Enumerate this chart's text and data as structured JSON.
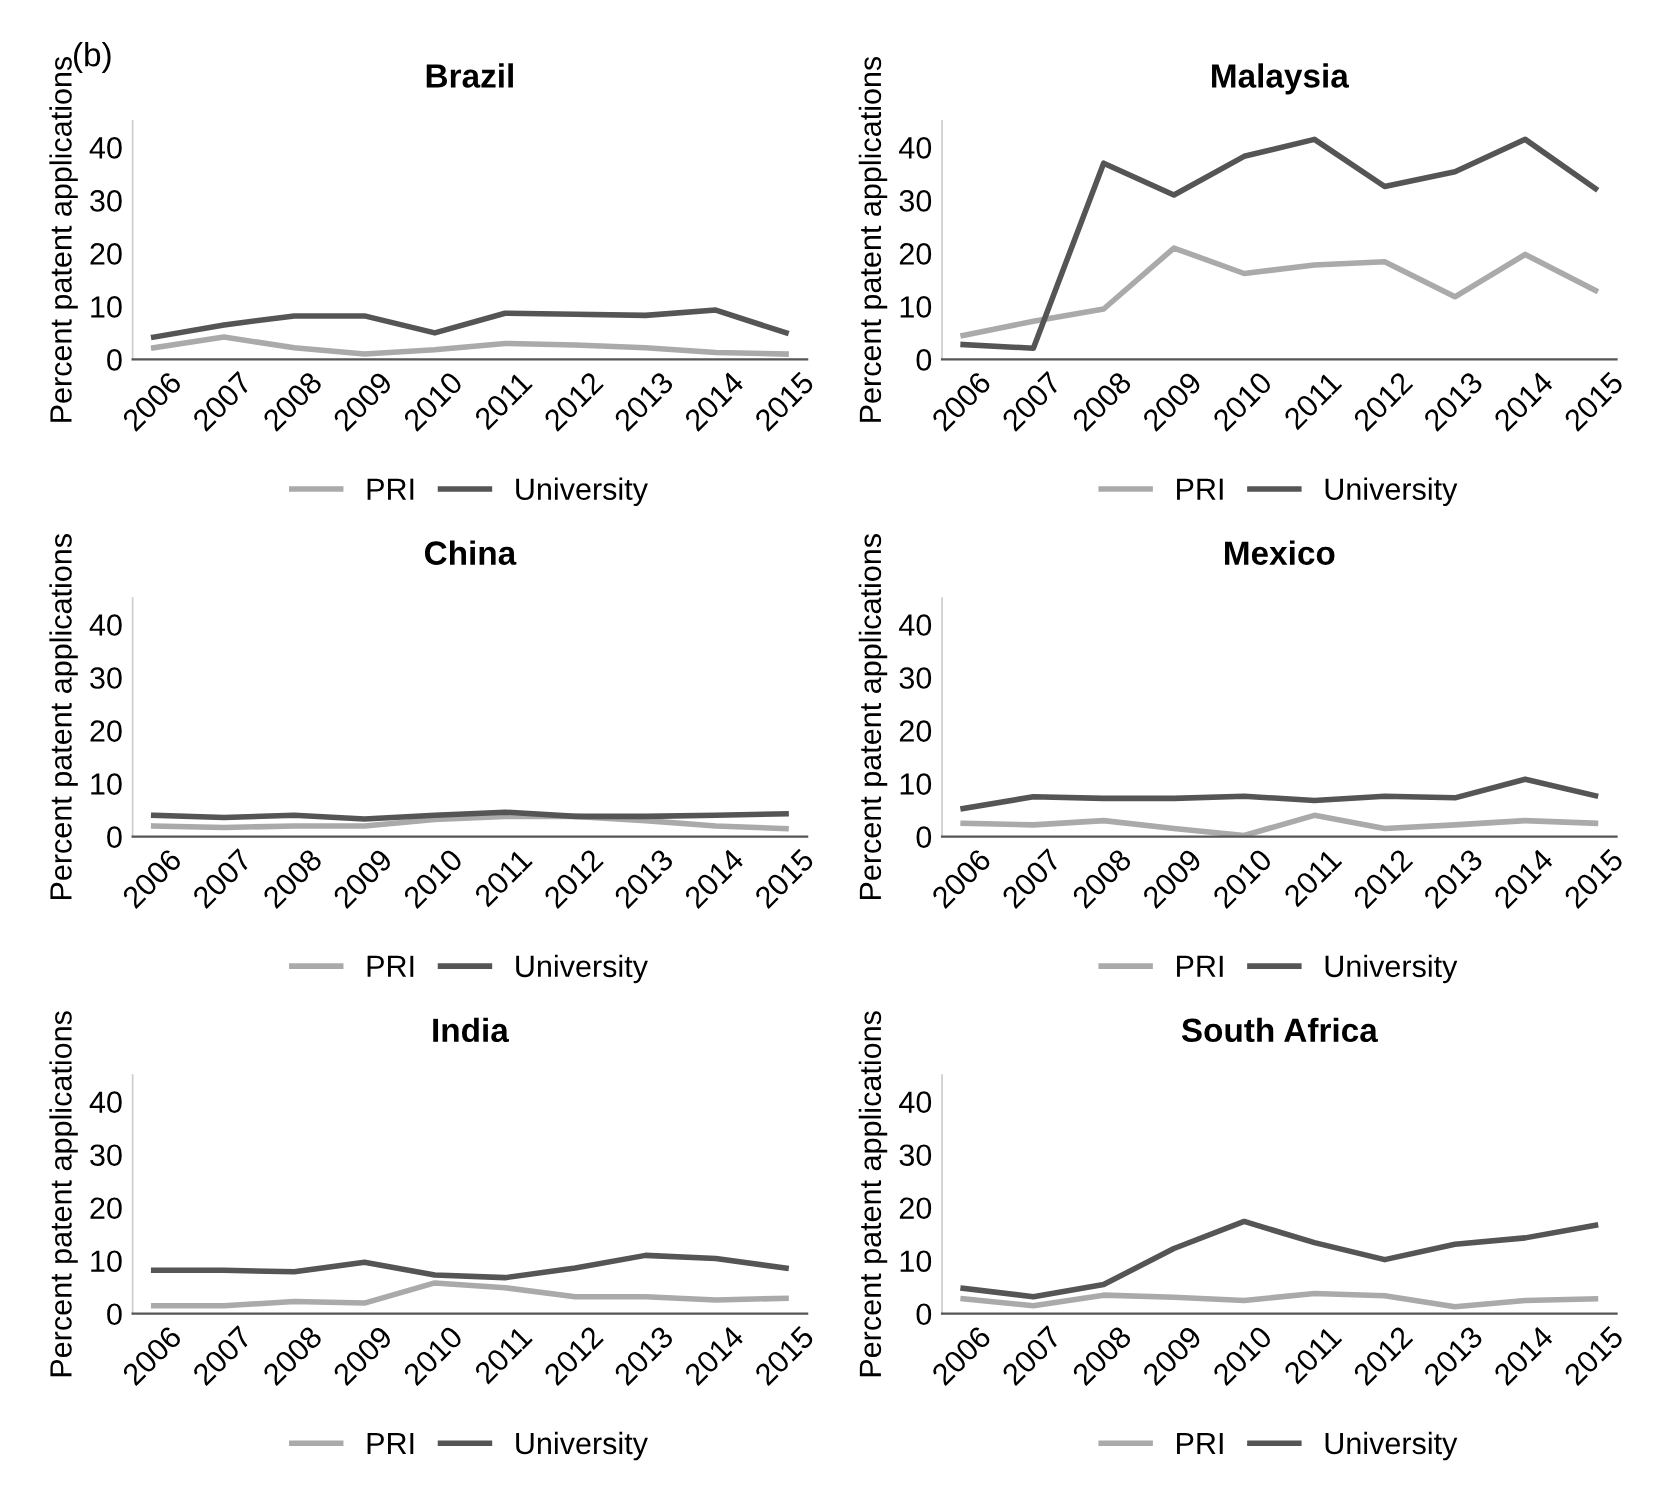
{
  "chart_data": [
    {
      "type": "line",
      "title": "Brazil",
      "ylabel": "Percent patent applications",
      "annotations": [
        "(b)"
      ],
      "categories": [
        "2006",
        "2007",
        "2008",
        "2009",
        "2010",
        "2011",
        "2012",
        "2013",
        "2014",
        "2015"
      ],
      "ylim": [
        0,
        45
      ],
      "yticks": [
        0,
        10,
        20,
        30,
        40
      ],
      "grid": false,
      "legend": "bottom",
      "series": [
        {
          "name": "PRI",
          "color": "#aaaaaa",
          "values": [
            2.2,
            4.2,
            2.2,
            1.0,
            1.8,
            3.0,
            2.7,
            2.2,
            1.3,
            1.0
          ]
        },
        {
          "name": "University",
          "color": "#555555",
          "values": [
            4.2,
            6.5,
            8.2,
            8.2,
            5.0,
            8.7,
            8.5,
            8.3,
            9.3,
            5.0
          ]
        }
      ]
    },
    {
      "type": "line",
      "title": "Malaysia",
      "ylabel": "Percent patent applications",
      "categories": [
        "2006",
        "2007",
        "2008",
        "2009",
        "2010",
        "2011",
        "2012",
        "2013",
        "2014",
        "2015"
      ],
      "ylim": [
        0,
        45
      ],
      "yticks": [
        0,
        10,
        20,
        30,
        40
      ],
      "grid": false,
      "legend": "bottom",
      "series": [
        {
          "name": "PRI",
          "color": "#aaaaaa",
          "values": [
            4.5,
            7.2,
            9.5,
            21,
            16.2,
            17.8,
            18.4,
            11.8,
            19.8,
            13.0
          ]
        },
        {
          "name": "University",
          "color": "#555555",
          "values": [
            2.8,
            2.1,
            37,
            31,
            38.3,
            41.5,
            32.6,
            35.4,
            41.5,
            32.2
          ]
        }
      ]
    },
    {
      "type": "line",
      "title": "China",
      "ylabel": "Percent patent applications",
      "categories": [
        "2006",
        "2007",
        "2008",
        "2009",
        "2010",
        "2011",
        "2012",
        "2013",
        "2014",
        "2015"
      ],
      "ylim": [
        0,
        45
      ],
      "yticks": [
        0,
        10,
        20,
        30,
        40
      ],
      "grid": false,
      "legend": "bottom",
      "series": [
        {
          "name": "PRI",
          "color": "#aaaaaa",
          "values": [
            2.0,
            1.7,
            2.0,
            2.0,
            3.2,
            3.8,
            3.8,
            3.0,
            2.0,
            1.5
          ]
        },
        {
          "name": "University",
          "color": "#555555",
          "values": [
            4.0,
            3.6,
            4.0,
            3.3,
            4.0,
            4.6,
            3.8,
            3.8,
            4.0,
            4.3
          ]
        }
      ]
    },
    {
      "type": "line",
      "title": "Mexico",
      "ylabel": "Percent patent applications",
      "categories": [
        "2006",
        "2007",
        "2008",
        "2009",
        "2010",
        "2011",
        "2012",
        "2013",
        "2014",
        "2015"
      ],
      "ylim": [
        0,
        45
      ],
      "yticks": [
        0,
        10,
        20,
        30,
        40
      ],
      "grid": false,
      "legend": "bottom",
      "series": [
        {
          "name": "PRI",
          "color": "#aaaaaa",
          "values": [
            2.5,
            2.2,
            3.0,
            1.5,
            0.2,
            4.0,
            1.5,
            2.2,
            3.0,
            2.5
          ]
        },
        {
          "name": "University",
          "color": "#555555",
          "values": [
            5.3,
            7.5,
            7.2,
            7.2,
            7.6,
            6.8,
            7.6,
            7.3,
            10.8,
            7.7
          ]
        }
      ]
    },
    {
      "type": "line",
      "title": "India",
      "ylabel": "Percent patent applications",
      "categories": [
        "2006",
        "2007",
        "2008",
        "2009",
        "2010",
        "2011",
        "2012",
        "2013",
        "2014",
        "2015"
      ],
      "ylim": [
        0,
        45
      ],
      "yticks": [
        0,
        10,
        20,
        30,
        40
      ],
      "grid": false,
      "legend": "bottom",
      "series": [
        {
          "name": "PRI",
          "color": "#aaaaaa",
          "values": [
            1.5,
            1.5,
            2.3,
            2.0,
            5.8,
            4.9,
            3.2,
            3.2,
            2.6,
            2.9
          ]
        },
        {
          "name": "University",
          "color": "#555555",
          "values": [
            8.2,
            8.2,
            7.9,
            9.7,
            7.3,
            6.8,
            8.6,
            11.0,
            10.4,
            8.6
          ]
        }
      ]
    },
    {
      "type": "line",
      "title": "South Africa",
      "ylabel": "Percent patent applications",
      "categories": [
        "2006",
        "2007",
        "2008",
        "2009",
        "2010",
        "2011",
        "2012",
        "2013",
        "2014",
        "2015"
      ],
      "ylim": [
        0,
        45
      ],
      "yticks": [
        0,
        10,
        20,
        30,
        40
      ],
      "grid": false,
      "legend": "bottom",
      "series": [
        {
          "name": "PRI",
          "color": "#aaaaaa",
          "values": [
            2.8,
            1.5,
            3.5,
            3.1,
            2.5,
            3.8,
            3.4,
            1.3,
            2.5,
            2.8
          ]
        },
        {
          "name": "University",
          "color": "#555555",
          "values": [
            4.8,
            3.2,
            5.5,
            12.3,
            17.4,
            13.4,
            10.2,
            13.1,
            14.3,
            16.7
          ]
        }
      ]
    }
  ]
}
